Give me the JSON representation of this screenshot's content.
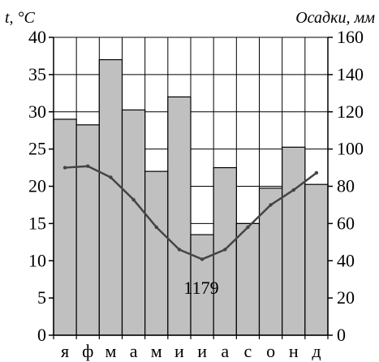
{
  "chart_data": {
    "type": "bar",
    "categories": [
      "я",
      "ф",
      "м",
      "а",
      "м",
      "и",
      "и",
      "а",
      "с",
      "о",
      "н",
      "д"
    ],
    "series": [
      {
        "chart_type": "bar",
        "axis": "right",
        "values": [
          116,
          113,
          148,
          121,
          88,
          128,
          54,
          90,
          60,
          79,
          101,
          81
        ],
        "color": "#c0c0c0"
      },
      {
        "chart_type": "line",
        "axis": "left",
        "values": [
          22.5,
          22.7,
          21.2,
          18.2,
          14.5,
          11.5,
          10.2,
          11.5,
          14.5,
          17.5,
          19.5,
          21.8
        ],
        "color": "#444444"
      }
    ],
    "ylabel_left": "t, °C",
    "ylabel_right": "Осадки, мм",
    "ylim_left": [
      0,
      40
    ],
    "ylim_right": [
      0,
      160
    ],
    "yticks_left": [
      0,
      5,
      10,
      15,
      20,
      25,
      30,
      35,
      40
    ],
    "yticks_right": [
      0,
      20,
      40,
      60,
      80,
      100,
      120,
      140,
      160
    ],
    "annotation": "1179",
    "grid": true
  }
}
